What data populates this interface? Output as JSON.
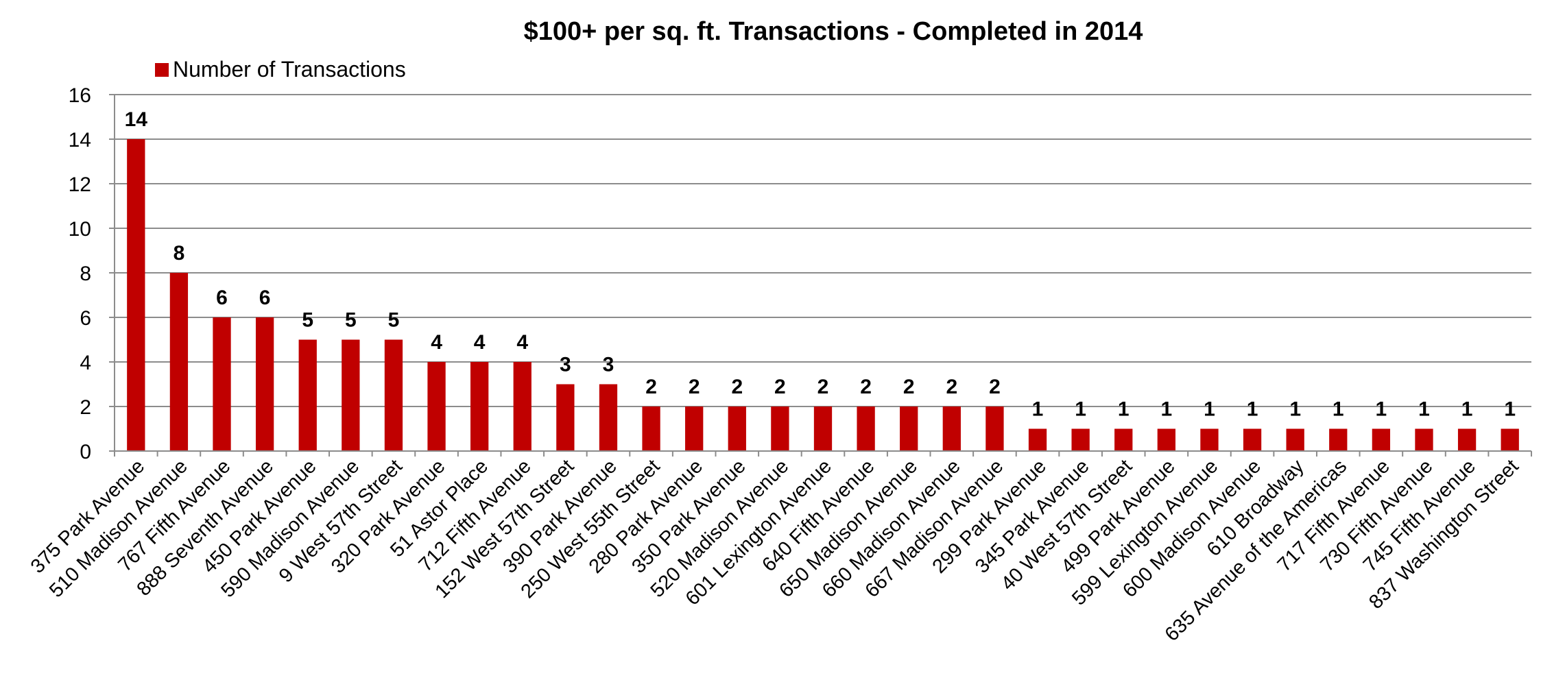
{
  "chart_data": {
    "type": "bar",
    "title": "$100+ per sq. ft. Transactions - Completed in 2014",
    "xlabel": "",
    "ylabel": "",
    "ylim": [
      0,
      16
    ],
    "yticks": [
      0,
      2,
      4,
      6,
      8,
      10,
      12,
      14,
      16
    ],
    "grid": true,
    "legend_position": "top-left",
    "bar_color": "#c00000",
    "categories": [
      "375 Park Avenue",
      "510 Madison Avenue",
      "767 Fifth Avenue",
      "888 Seventh Avenue",
      "450 Park Avenue",
      "590 Madison Avenue",
      "9 West 57th Street",
      "320 Park Avenue",
      "51 Astor Place",
      "712 Fifth Avenue",
      "152 West 57th Street",
      "390 Park Avenue",
      "250 West 55th Street",
      "280 Park Avenue",
      "350 Park Avenue",
      "520 Madison Avenue",
      "601 Lexington Avenue",
      "640 Fifth Avenue",
      "650 Madison Avenue",
      "660 Madison Avenue",
      "667 Madison Avenue",
      "299 Park Avenue",
      "345 Park Avenue",
      "40 West 57th Street",
      "499 Park Avenue",
      "599 Lexington Avenue",
      "600 Madison Avenue",
      "610 Broadway",
      "635 Avenue of the Americas",
      "717 Fifth Avenue",
      "730 Fifth Avenue",
      "745 Fifth Avenue",
      "837 Washington Street"
    ],
    "series": [
      {
        "name": "Number of Transactions",
        "values": [
          14,
          8,
          6,
          6,
          5,
          5,
          5,
          4,
          4,
          4,
          3,
          3,
          2,
          2,
          2,
          2,
          2,
          2,
          2,
          2,
          2,
          1,
          1,
          1,
          1,
          1,
          1,
          1,
          1,
          1,
          1,
          1,
          1
        ]
      }
    ]
  }
}
